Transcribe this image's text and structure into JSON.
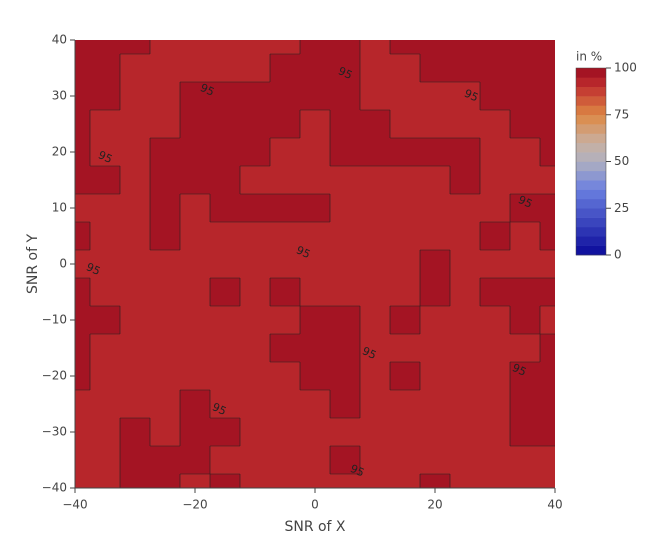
{
  "chart_data": {
    "type": "contour",
    "xaxis_title": "SNR of X",
    "yaxis_title": "SNR of Y",
    "colorbar_title": "in %",
    "x": [
      -40,
      -35,
      -30,
      -25,
      -20,
      -15,
      -10,
      -5,
      0,
      5,
      10,
      15,
      20,
      25,
      30,
      35,
      40
    ],
    "y": [
      40,
      35,
      30,
      25,
      20,
      15,
      10,
      5,
      0,
      -5,
      -10,
      -15,
      -20,
      -25,
      -30,
      -35,
      -40
    ],
    "z": [
      [
        97,
        97,
        97,
        93,
        93,
        93,
        93,
        93,
        97,
        97,
        93,
        97,
        97,
        97,
        97,
        97,
        97
      ],
      [
        97,
        97,
        93,
        93,
        93,
        93,
        93,
        97,
        97,
        97,
        93,
        93,
        97,
        97,
        97,
        97,
        97
      ],
      [
        97,
        97,
        93,
        93,
        97,
        97,
        97,
        97,
        97,
        97,
        93,
        93,
        93,
        93,
        97,
        97,
        97
      ],
      [
        97,
        93,
        93,
        93,
        97,
        97,
        97,
        97,
        93,
        97,
        97,
        93,
        93,
        93,
        93,
        97,
        97
      ],
      [
        97,
        93,
        93,
        97,
        97,
        97,
        97,
        93,
        93,
        97,
        97,
        97,
        97,
        97,
        93,
        93,
        97
      ],
      [
        97,
        97,
        93,
        97,
        97,
        97,
        93,
        93,
        93,
        93,
        93,
        93,
        93,
        97,
        93,
        93,
        93
      ],
      [
        93,
        93,
        93,
        97,
        93,
        97,
        97,
        97,
        97,
        93,
        93,
        93,
        93,
        93,
        93,
        97,
        97
      ],
      [
        97,
        93,
        93,
        97,
        93,
        93,
        93,
        93,
        93,
        93,
        93,
        93,
        93,
        93,
        97,
        93,
        97
      ],
      [
        93,
        93,
        93,
        93,
        93,
        93,
        93,
        93,
        93,
        93,
        93,
        93,
        97,
        93,
        93,
        93,
        93
      ],
      [
        97,
        93,
        93,
        93,
        93,
        97,
        93,
        97,
        93,
        93,
        93,
        93,
        97,
        93,
        97,
        97,
        97
      ],
      [
        97,
        97,
        93,
        93,
        93,
        93,
        93,
        93,
        97,
        97,
        93,
        97,
        93,
        93,
        93,
        97,
        93
      ],
      [
        97,
        93,
        93,
        93,
        93,
        93,
        93,
        97,
        97,
        97,
        93,
        93,
        93,
        93,
        93,
        93,
        97
      ],
      [
        97,
        93,
        93,
        93,
        93,
        93,
        93,
        93,
        97,
        97,
        93,
        97,
        93,
        93,
        93,
        97,
        97
      ],
      [
        93,
        93,
        93,
        93,
        97,
        93,
        93,
        93,
        93,
        97,
        93,
        93,
        93,
        93,
        93,
        97,
        97
      ],
      [
        93,
        93,
        97,
        93,
        97,
        97,
        93,
        93,
        93,
        93,
        93,
        93,
        93,
        93,
        93,
        97,
        97
      ],
      [
        93,
        93,
        97,
        97,
        97,
        93,
        93,
        93,
        93,
        97,
        93,
        93,
        93,
        93,
        93,
        93,
        93
      ],
      [
        93,
        93,
        97,
        97,
        93,
        97,
        93,
        93,
        93,
        93,
        93,
        93,
        97,
        93,
        93,
        93,
        93
      ]
    ],
    "contours": {
      "start": 0,
      "end": 100,
      "size": 5
    },
    "colorscale": [
      [
        0,
        "#0a0a9a"
      ],
      [
        0.35,
        "#6a7fe0"
      ],
      [
        0.5,
        "#b0b0c0"
      ],
      [
        0.6,
        "#c8b0a0"
      ],
      [
        0.75,
        "#dd8844"
      ],
      [
        0.9,
        "#c03030"
      ],
      [
        1,
        "#9a0a1e"
      ]
    ],
    "zlim": [
      0,
      100
    ],
    "colorbar_ticks": [
      0,
      25,
      50,
      75,
      100
    ],
    "xlim": [
      -40,
      40
    ],
    "ylim": [
      -40,
      40
    ],
    "xticks": [
      {
        "value": -40,
        "label": "−40"
      },
      {
        "value": -20,
        "label": "−20"
      },
      0,
      20,
      40
    ],
    "yticks": [
      {
        "value": -40,
        "label": "−40"
      },
      {
        "value": -30,
        "label": "−30"
      },
      {
        "value": -20,
        "label": "−20"
      },
      {
        "value": -10,
        "label": "−10"
      },
      0,
      10,
      20,
      30,
      40
    ],
    "contour_labels": {
      "x": [
        -18,
        5,
        26,
        -35,
        35,
        -2,
        -37,
        9,
        -16,
        34,
        7
      ],
      "y": [
        31,
        34,
        30,
        19,
        11,
        2,
        -1,
        -16,
        -26,
        -19,
        -37
      ],
      "values": [
        95,
        95,
        95,
        95,
        95,
        95,
        95,
        95,
        95,
        95,
        95
      ]
    }
  }
}
